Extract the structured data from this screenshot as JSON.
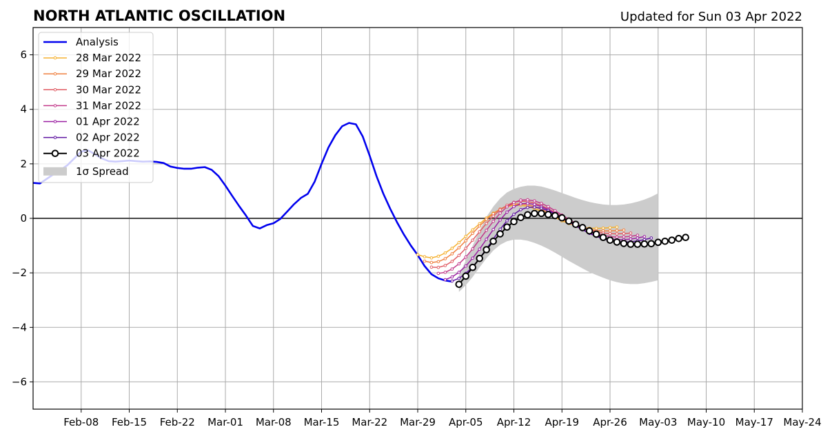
{
  "header": {
    "title": "NORTH ATLANTIC OSCILLATION",
    "updated": "Updated for Sun 03 Apr 2022"
  },
  "chart_data": {
    "type": "line",
    "title": "NORTH ATLANTIC OSCILLATION",
    "subtitle": "Updated for Sun 03 Apr 2022",
    "xlabel": "",
    "ylabel": "",
    "xlim": [
      "2022-02-01",
      "2022-05-24"
    ],
    "ylim": [
      -7,
      7
    ],
    "grid": true,
    "legend_position": "top-left",
    "x_ticks": [
      "2022-02-08",
      "2022-02-15",
      "2022-02-22",
      "2022-03-01",
      "2022-03-08",
      "2022-03-15",
      "2022-03-22",
      "2022-03-29",
      "2022-04-05",
      "2022-04-12",
      "2022-04-19",
      "2022-04-26",
      "2022-05-03",
      "2022-05-10",
      "2022-05-17",
      "2022-05-24"
    ],
    "x_tick_labels": [
      "Feb-08",
      "Feb-15",
      "Feb-22",
      "Mar-01",
      "Mar-08",
      "Mar-15",
      "Mar-22",
      "Mar-29",
      "Apr-05",
      "Apr-12",
      "Apr-19",
      "Apr-26",
      "May-03",
      "May-10",
      "May-17",
      "May-24"
    ],
    "y_ticks": [
      -6,
      -4,
      -2,
      0,
      2,
      4,
      6
    ],
    "y_tick_labels": [
      "−6",
      "−4",
      "−2",
      "0",
      "2",
      "4",
      "6"
    ],
    "legend": [
      {
        "label": "Analysis",
        "kind": "analysis"
      },
      {
        "label": "28 Mar 2022",
        "kind": "forecast",
        "series": 0
      },
      {
        "label": "29 Mar 2022",
        "kind": "forecast",
        "series": 1
      },
      {
        "label": "30 Mar 2022",
        "kind": "forecast",
        "series": 2
      },
      {
        "label": "31 Mar 2022",
        "kind": "forecast",
        "series": 3
      },
      {
        "label": "01 Apr 2022",
        "kind": "forecast",
        "series": 4
      },
      {
        "label": "02 Apr 2022",
        "kind": "forecast",
        "series": 5
      },
      {
        "label": "03 Apr 2022",
        "kind": "latest"
      },
      {
        "label": "1σ Spread",
        "kind": "spread"
      }
    ],
    "analysis": {
      "name": "Analysis",
      "color": "#0000ee",
      "x": [
        "2022-02-01",
        "2022-02-02",
        "2022-02-03",
        "2022-02-04",
        "2022-02-05",
        "2022-02-06",
        "2022-02-07",
        "2022-02-08",
        "2022-02-09",
        "2022-02-10",
        "2022-02-11",
        "2022-02-12",
        "2022-02-13",
        "2022-02-14",
        "2022-02-15",
        "2022-02-16",
        "2022-02-17",
        "2022-02-18",
        "2022-02-19",
        "2022-02-20",
        "2022-02-21",
        "2022-02-22",
        "2022-02-23",
        "2022-02-24",
        "2022-02-25",
        "2022-02-26",
        "2022-02-27",
        "2022-02-28",
        "2022-03-01",
        "2022-03-02",
        "2022-03-03",
        "2022-03-04",
        "2022-03-05",
        "2022-03-06",
        "2022-03-07",
        "2022-03-08",
        "2022-03-09",
        "2022-03-10",
        "2022-03-11",
        "2022-03-12",
        "2022-03-13",
        "2022-03-14",
        "2022-03-15",
        "2022-03-16",
        "2022-03-17",
        "2022-03-18",
        "2022-03-19",
        "2022-03-20",
        "2022-03-21",
        "2022-03-22",
        "2022-03-23",
        "2022-03-24",
        "2022-03-25",
        "2022-03-26",
        "2022-03-27",
        "2022-03-28",
        "2022-03-29",
        "2022-03-30",
        "2022-03-31",
        "2022-04-01",
        "2022-04-02",
        "2022-04-03"
      ],
      "y": [
        1.3,
        1.28,
        1.45,
        1.62,
        1.78,
        1.95,
        2.2,
        2.45,
        2.5,
        2.35,
        2.2,
        2.1,
        2.08,
        2.1,
        2.12,
        2.1,
        2.08,
        2.09,
        2.07,
        2.03,
        1.9,
        1.85,
        1.82,
        1.82,
        1.86,
        1.88,
        1.78,
        1.55,
        1.2,
        0.82,
        0.45,
        0.1,
        -0.28,
        -0.37,
        -0.25,
        -0.18,
        -0.02,
        0.25,
        0.52,
        0.75,
        0.9,
        1.35,
        2.0,
        2.6,
        3.05,
        3.38,
        3.5,
        3.45,
        3.0,
        2.3,
        1.55,
        0.9,
        0.35,
        -0.15,
        -0.6,
        -1.0,
        -1.35,
        -1.75,
        -2.05,
        -2.2,
        -2.28,
        -2.32
      ]
    },
    "forecasts": [
      {
        "name": "28 Mar 2022",
        "color": "#f5b02e",
        "start": "2022-03-29",
        "values": [
          -1.33,
          -1.41,
          -1.45,
          -1.39,
          -1.27,
          -1.1,
          -0.89,
          -0.66,
          -0.42,
          -0.2,
          0.01,
          0.19,
          0.33,
          0.43,
          0.48,
          0.48,
          0.44,
          0.36,
          0.26,
          0.15,
          0.03,
          -0.09,
          -0.19,
          -0.27,
          -0.33,
          -0.36,
          -0.37,
          -0.36,
          -0.34,
          -0.32
        ]
      },
      {
        "name": "29 Mar 2022",
        "color": "#ef7e3d",
        "start": "2022-03-30",
        "values": [
          -1.57,
          -1.62,
          -1.59,
          -1.48,
          -1.3,
          -1.08,
          -0.82,
          -0.55,
          -0.28,
          -0.04,
          0.17,
          0.34,
          0.46,
          0.52,
          0.53,
          0.5,
          0.43,
          0.33,
          0.21,
          0.09,
          -0.04,
          -0.16,
          -0.27,
          -0.35,
          -0.41,
          -0.45,
          -0.46,
          -0.46,
          -0.45,
          -0.43
        ]
      },
      {
        "name": "30 Mar 2022",
        "color": "#e05b63",
        "start": "2022-03-31",
        "values": [
          -1.79,
          -1.8,
          -1.73,
          -1.58,
          -1.36,
          -1.1,
          -0.8,
          -0.49,
          -0.19,
          0.08,
          0.31,
          0.48,
          0.59,
          0.63,
          0.62,
          0.56,
          0.47,
          0.35,
          0.21,
          0.07,
          -0.07,
          -0.2,
          -0.32,
          -0.42,
          -0.49,
          -0.54,
          -0.56,
          -0.57,
          -0.56,
          -0.54
        ]
      },
      {
        "name": "31 Mar 2022",
        "color": "#c2398a",
        "start": "2022-04-01",
        "values": [
          -2.02,
          -1.98,
          -1.86,
          -1.67,
          -1.42,
          -1.12,
          -0.78,
          -0.44,
          -0.11,
          0.19,
          0.42,
          0.58,
          0.67,
          0.68,
          0.64,
          0.55,
          0.43,
          0.28,
          0.12,
          -0.03,
          -0.18,
          -0.32,
          -0.45,
          -0.55,
          -0.62,
          -0.67,
          -0.69,
          -0.68,
          -0.66,
          -0.62
        ]
      },
      {
        "name": "01 Apr 2022",
        "color": "#9a1da1",
        "start": "2022-04-02",
        "values": [
          -2.25,
          -2.15,
          -1.98,
          -1.75,
          -1.46,
          -1.13,
          -0.77,
          -0.41,
          -0.06,
          0.23,
          0.43,
          0.53,
          0.55,
          0.51,
          0.43,
          0.32,
          0.18,
          0.03,
          -0.12,
          -0.27,
          -0.41,
          -0.53,
          -0.63,
          -0.71,
          -0.76,
          -0.78,
          -0.78,
          -0.76,
          -0.72,
          -0.67
        ]
      },
      {
        "name": "02 Apr 2022",
        "color": "#5e12a0",
        "start": "2022-04-03",
        "values": [
          -2.3,
          -2.2,
          -2.02,
          -1.78,
          -1.47,
          -1.12,
          -0.76,
          -0.4,
          -0.09,
          0.15,
          0.32,
          0.4,
          0.41,
          0.37,
          0.28,
          0.16,
          0.02,
          -0.13,
          -0.28,
          -0.42,
          -0.55,
          -0.66,
          -0.75,
          -0.82,
          -0.86,
          -0.87,
          -0.86,
          -0.83,
          -0.78,
          -0.72
        ]
      }
    ],
    "latest": {
      "name": "03 Apr 2022",
      "color": "#000000",
      "start": "2022-04-04",
      "values": [
        -2.42,
        -2.12,
        -1.8,
        -1.47,
        -1.15,
        -0.84,
        -0.57,
        -0.32,
        -0.12,
        0.03,
        0.13,
        0.18,
        0.18,
        0.14,
        0.1,
        0.02,
        -0.1,
        -0.22,
        -0.34,
        -0.46,
        -0.58,
        -0.7,
        -0.8,
        -0.87,
        -0.92,
        -0.95,
        -0.95,
        -0.94,
        -0.93,
        -0.88,
        -0.84,
        -0.8,
        -0.74,
        -0.7
      ]
    },
    "spread": {
      "name": "1σ Spread",
      "color": "#cccccc",
      "start": "2022-04-04",
      "upper": [
        -2.1,
        -1.55,
        -1.0,
        -0.45,
        0.05,
        0.43,
        0.73,
        0.95,
        1.08,
        1.16,
        1.2,
        1.2,
        1.17,
        1.1,
        1.02,
        0.93,
        0.84,
        0.75,
        0.67,
        0.6,
        0.55,
        0.51,
        0.49,
        0.49,
        0.51,
        0.55,
        0.61,
        0.69,
        0.79,
        0.92
      ],
      "lower": [
        -2.7,
        -2.45,
        -2.15,
        -1.8,
        -1.47,
        -1.18,
        -0.97,
        -0.84,
        -0.78,
        -0.78,
        -0.82,
        -0.9,
        -1.0,
        -1.12,
        -1.26,
        -1.41,
        -1.56,
        -1.7,
        -1.84,
        -1.97,
        -2.08,
        -2.18,
        -2.27,
        -2.34,
        -2.39,
        -2.41,
        -2.41,
        -2.38,
        -2.33,
        -2.27
      ]
    }
  }
}
